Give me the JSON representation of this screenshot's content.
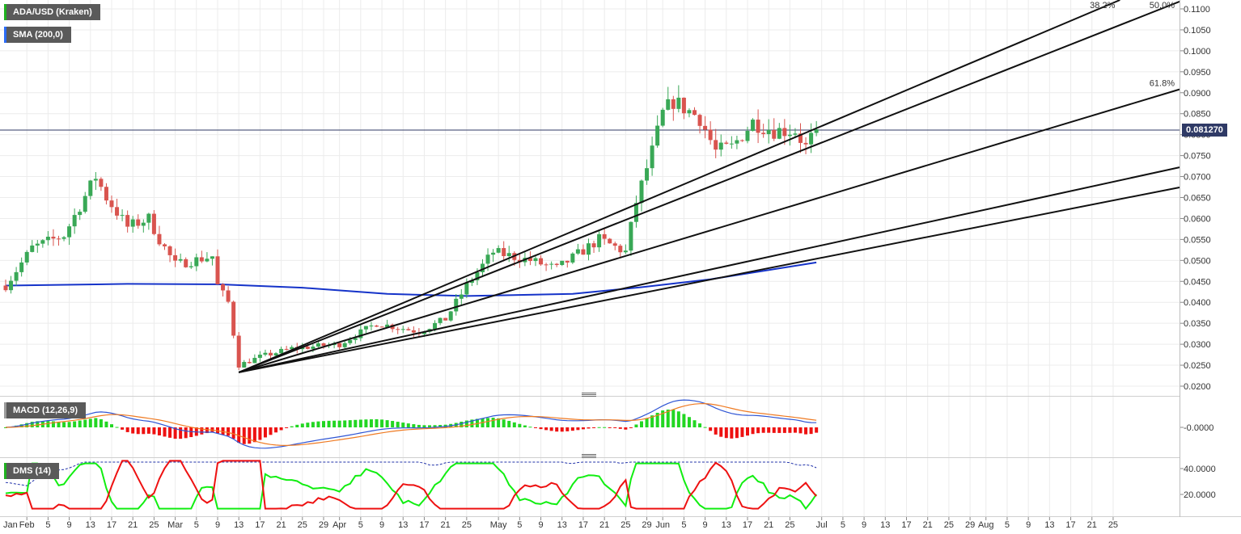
{
  "legend": {
    "pair": "ADA/USD (Kraken)",
    "sma": "SMA (200,0)",
    "macd": "MACD (12,26,9)",
    "dms": "DMS (14)"
  },
  "current_price_label": "0.081270",
  "colors": {
    "up": "#39a856",
    "down": "#d9544f",
    "sma": "#1533c9",
    "macd_line": "#2f55d4",
    "signal_line": "#ef7a22",
    "hist_pos": "#22d622",
    "hist_neg": "#ee1111",
    "dmi_plus": "#11ee11",
    "dmi_minus": "#ee1111",
    "adx": "#2233aa"
  },
  "chart_data": [
    {
      "type": "candlestick",
      "title": "ADA/USD (Kraken)",
      "timeframe": "daily",
      "ylim": [
        0.0195,
        0.1115
      ],
      "y_ticks": [
        "0.1100",
        "0.1050",
        "0.1000",
        "0.0950",
        "0.0900",
        "0.0850",
        "0.0800",
        "0.0750",
        "0.0700",
        "0.0650",
        "0.0600",
        "0.0550",
        "0.0500",
        "0.0450",
        "0.0400",
        "0.0350",
        "0.0300",
        "0.0250",
        "0.0200"
      ],
      "x_ticks": [
        "Jan",
        "Feb",
        "5",
        "9",
        "13",
        "17",
        "21",
        "25",
        "Mar",
        "5",
        "9",
        "13",
        "17",
        "21",
        "25",
        "29",
        "Apr",
        "5",
        "9",
        "13",
        "17",
        "21",
        "25",
        "May",
        "5",
        "9",
        "13",
        "17",
        "21",
        "25",
        "29",
        "Jun",
        "5",
        "9",
        "13",
        "17",
        "21",
        "25",
        "Jul",
        "5",
        "9",
        "13",
        "17",
        "21",
        "25",
        "29",
        "Aug",
        "5",
        "9",
        "13",
        "17",
        "21",
        "25"
      ],
      "close_keypoints": [
        {
          "date": "2019-01-28",
          "close": 0.044
        },
        {
          "date": "2019-02-02",
          "close": 0.053
        },
        {
          "date": "2019-02-08",
          "close": 0.056
        },
        {
          "date": "2019-02-14",
          "close": 0.07
        },
        {
          "date": "2019-02-16",
          "close": 0.065
        },
        {
          "date": "2019-02-20",
          "close": 0.058
        },
        {
          "date": "2019-02-24",
          "close": 0.06
        },
        {
          "date": "2019-02-26",
          "close": 0.055
        },
        {
          "date": "2019-03-01",
          "close": 0.049
        },
        {
          "date": "2019-03-08",
          "close": 0.051
        },
        {
          "date": "2019-03-09",
          "close": 0.044
        },
        {
          "date": "2019-03-11",
          "close": 0.04
        },
        {
          "date": "2019-03-13",
          "close": 0.025
        },
        {
          "date": "2019-03-17",
          "close": 0.027
        },
        {
          "date": "2019-03-23",
          "close": 0.029
        },
        {
          "date": "2019-04-01",
          "close": 0.03
        },
        {
          "date": "2019-04-08",
          "close": 0.035
        },
        {
          "date": "2019-04-16",
          "close": 0.033
        },
        {
          "date": "2019-04-21",
          "close": 0.036
        },
        {
          "date": "2019-04-25",
          "close": 0.044
        },
        {
          "date": "2019-04-30",
          "close": 0.052
        },
        {
          "date": "2019-05-07",
          "close": 0.05
        },
        {
          "date": "2019-05-12",
          "close": 0.048
        },
        {
          "date": "2019-05-20",
          "close": 0.055
        },
        {
          "date": "2019-05-25",
          "close": 0.052
        },
        {
          "date": "2019-05-27",
          "close": 0.064
        },
        {
          "date": "2019-05-30",
          "close": 0.076
        },
        {
          "date": "2019-06-01",
          "close": 0.085
        },
        {
          "date": "2019-06-03",
          "close": 0.088
        },
        {
          "date": "2019-06-08",
          "close": 0.084
        },
        {
          "date": "2019-06-11",
          "close": 0.076
        },
        {
          "date": "2019-06-14",
          "close": 0.077
        },
        {
          "date": "2019-06-18",
          "close": 0.083
        },
        {
          "date": "2019-06-22",
          "close": 0.081
        },
        {
          "date": "2019-06-26",
          "close": 0.081
        },
        {
          "date": "2019-06-28",
          "close": 0.077
        },
        {
          "date": "2019-06-30",
          "close": 0.0813
        }
      ],
      "sma_200": [
        {
          "date": "2019-01-28",
          "value": 0.044
        },
        {
          "date": "2019-02-20",
          "value": 0.0444
        },
        {
          "date": "2019-03-09",
          "value": 0.0443
        },
        {
          "date": "2019-03-25",
          "value": 0.0435
        },
        {
          "date": "2019-04-10",
          "value": 0.042
        },
        {
          "date": "2019-04-25",
          "value": 0.0415
        },
        {
          "date": "2019-05-15",
          "value": 0.042
        },
        {
          "date": "2019-05-28",
          "value": 0.0436
        },
        {
          "date": "2019-06-10",
          "value": 0.0455
        },
        {
          "date": "2019-06-30",
          "value": 0.0495
        }
      ],
      "gann_fan": {
        "origin": {
          "date": "2019-03-13",
          "price": 0.0233
        },
        "lines": [
          {
            "label": "38.2%",
            "through": {
              "date": "2019-08-27",
              "price": 0.1125
            }
          },
          {
            "label": "50.0%",
            "through": {
              "date": "2019-08-27",
              "price": 0.1065
            }
          },
          {
            "label": "61.8%",
            "through": {
              "date": "2019-08-27",
              "price": 0.0868
            }
          },
          {
            "label": "",
            "through": {
              "date": "2019-08-27",
              "price": 0.0693
            }
          },
          {
            "label": "",
            "through": {
              "date": "2019-08-27",
              "price": 0.0648
            }
          }
        ]
      },
      "current_price": 0.08127
    },
    {
      "type": "line",
      "title": "MACD (12,26,9)",
      "y_ticks": [
        "-0.0000"
      ],
      "series": [
        "MACD",
        "Signal",
        "Histogram"
      ]
    },
    {
      "type": "line",
      "title": "DMS (14)",
      "y_ticks": [
        "40.0000",
        "20.0000"
      ],
      "ylim": [
        8,
        47
      ],
      "series": [
        "+DI",
        "-DI",
        "ADX"
      ]
    }
  ]
}
